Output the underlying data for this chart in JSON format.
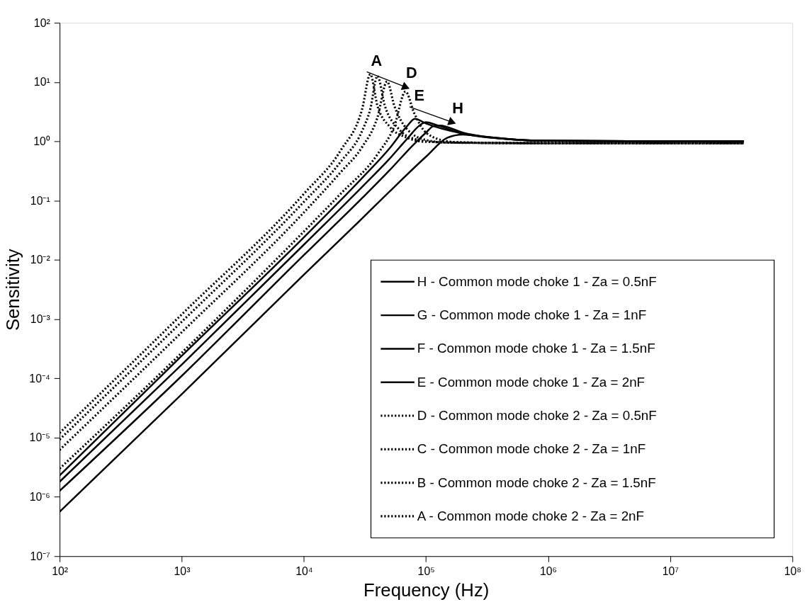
{
  "chart_data": {
    "type": "line",
    "xlabel": "Frequency (Hz)",
    "ylabel": "Sensitivity",
    "log": "xy",
    "grid": false,
    "legend": "bottom right",
    "marker": "none",
    "xlim": [
      100,
      100000000
    ],
    "ylim": [
      1e-07,
      100
    ],
    "xticks": [
      {
        "value": 100,
        "label": "10²"
      },
      {
        "value": 1000,
        "label": "10³"
      },
      {
        "value": 10000,
        "label": "10⁴"
      },
      {
        "value": 100000,
        "label": "10⁵"
      },
      {
        "value": 1000000,
        "label": "10⁶"
      },
      {
        "value": 10000000,
        "label": "10⁷"
      },
      {
        "value": 100000000,
        "label": "10⁸"
      }
    ],
    "yticks": [
      {
        "value": 1e-07,
        "label": "10⁻⁷"
      },
      {
        "value": 1e-06,
        "label": "10⁻⁶"
      },
      {
        "value": 1e-05,
        "label": "10⁻⁵"
      },
      {
        "value": 0.0001,
        "label": "10⁻⁴"
      },
      {
        "value": 0.001,
        "label": "10⁻³"
      },
      {
        "value": 0.01,
        "label": "10⁻²"
      },
      {
        "value": 0.1,
        "label": "10⁻¹"
      },
      {
        "value": 1,
        "label": "10⁰"
      },
      {
        "value": 10,
        "label": "10¹"
      },
      {
        "value": 100,
        "label": "10²"
      }
    ],
    "annotations": [
      "A",
      "D",
      "E",
      "H"
    ],
    "series": [
      {
        "name": "H - Common mode choke 1 - Za = 0.5nF",
        "color": "#000000",
        "line_style": "solid",
        "x": [
          100,
          1000,
          10000,
          30000,
          50000,
          100000,
          150000,
          200000,
          300000,
          500000,
          1000000,
          10000000,
          40000000
        ],
        "values": [
          5.6e-07,
          5.4e-05,
          0.0056,
          0.05,
          0.14,
          0.55,
          1.15,
          1.3,
          1.2,
          1.08,
          1.02,
          1.0,
          1.0
        ]
      },
      {
        "name": "G - Common mode choke 1 - Za = 1nF",
        "color": "#000000",
        "line_style": "solid",
        "x": [
          100,
          1000,
          10000,
          30000,
          50000,
          80000,
          100000,
          115000,
          130000,
          200000,
          500000,
          1000000,
          10000000,
          40000000
        ],
        "values": [
          1.26e-06,
          0.00011,
          0.012,
          0.11,
          0.32,
          0.9,
          1.4,
          1.8,
          1.85,
          1.4,
          1.08,
          1.02,
          1.0,
          1.0
        ]
      },
      {
        "name": "F - Common mode choke 1 - Za = 1.5nF",
        "color": "#000000",
        "line_style": "solid",
        "x": [
          100,
          1000,
          10000,
          30000,
          50000,
          70000,
          90000,
          100000,
          120000,
          200000,
          500000,
          1000000,
          10000000,
          40000000
        ],
        "values": [
          1.8e-06,
          0.00017,
          0.018,
          0.17,
          0.5,
          1.1,
          1.9,
          2.1,
          1.9,
          1.35,
          1.08,
          1.02,
          1.0,
          1.0
        ]
      },
      {
        "name": "E - Common mode choke 1 - Za = 2nF",
        "color": "#000000",
        "line_style": "solid",
        "x": [
          100,
          1000,
          10000,
          30000,
          50000,
          70000,
          81000,
          100000,
          200000,
          500000,
          1000000,
          10000000,
          40000000
        ],
        "values": [
          2.3e-06,
          0.00024,
          0.024,
          0.24,
          0.75,
          1.8,
          2.4,
          2.0,
          1.35,
          1.08,
          1.02,
          1.0,
          1.0
        ]
      },
      {
        "name": "D - Common mode choke 2 - Za = 0.5nF",
        "color": "#000000",
        "line_style": "dotted",
        "x": [
          100,
          1000,
          10000,
          20000,
          40000,
          55000,
          68000,
          80000,
          100000,
          150000,
          200000,
          1000000,
          10000000,
          40000000
        ],
        "values": [
          3e-06,
          0.00027,
          0.03,
          0.13,
          0.6,
          1.8,
          6.9,
          3.0,
          1.4,
          1.0,
          0.95,
          0.93,
          0.93,
          0.93
        ]
      },
      {
        "name": "C - Common mode choke 2 - Za = 1nF",
        "color": "#000000",
        "line_style": "dotted",
        "x": [
          100,
          1000,
          10000,
          20000,
          30000,
          40000,
          48000,
          55000,
          70000,
          100000,
          150000,
          1000000,
          10000000,
          40000000
        ],
        "values": [
          6.2e-06,
          0.0006,
          0.063,
          0.3,
          0.8,
          2.5,
          10.2,
          4.0,
          1.6,
          1.05,
          0.95,
          0.93,
          0.93,
          0.93
        ]
      },
      {
        "name": "B - Common mode choke 2 - Za = 1.5nF",
        "color": "#000000",
        "line_style": "dotted",
        "x": [
          100,
          1000,
          10000,
          20000,
          30000,
          35000,
          40000,
          46000,
          60000,
          80000,
          120000,
          1000000,
          10000000,
          40000000
        ],
        "values": [
          9.3e-06,
          0.0009,
          0.095,
          0.45,
          1.5,
          3.5,
          12.6,
          4.0,
          1.6,
          1.1,
          0.97,
          0.93,
          0.93,
          0.93
        ]
      },
      {
        "name": "A - Common mode choke 2 - Za = 2nF",
        "color": "#000000",
        "line_style": "dotted",
        "x": [
          100,
          1000,
          10000,
          20000,
          30000,
          35000,
          40000,
          50000,
          70000,
          100000,
          1000000,
          10000000,
          40000000
        ],
        "values": [
          1.2e-05,
          0.0012,
          0.13,
          0.7,
          3.5,
          13.5,
          4.0,
          1.8,
          1.15,
          0.98,
          0.93,
          0.93,
          0.93
        ]
      }
    ]
  }
}
